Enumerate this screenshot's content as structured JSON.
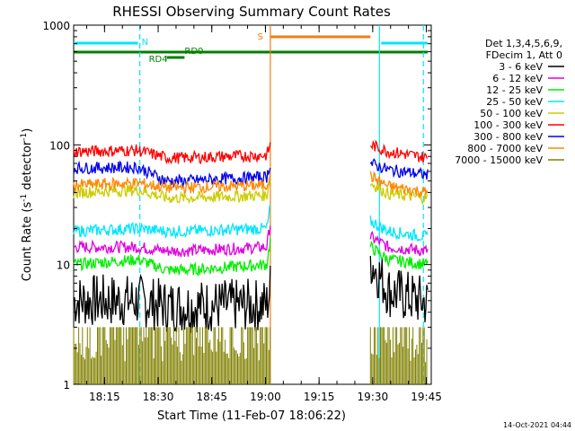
{
  "chart_data": {
    "type": "line",
    "title": "RHESSI Observing Summary Count Rates",
    "xlabel": "Start Time (11-Feb-07 18:06:22)",
    "ylabel_main": "Count Rate (s",
    "ylabel_sup1": "-1",
    "ylabel_mid": " detector",
    "ylabel_sup2": "-1",
    "ylabel_end": ")",
    "y_scale": "log",
    "ylim": [
      1,
      1000
    ],
    "xlim_minutes": [
      0,
      100
    ],
    "x_ticks": [
      "18:15",
      "18:30",
      "18:45",
      "19:00",
      "19:15",
      "19:30",
      "19:45"
    ],
    "y_ticks": [
      "1",
      "10",
      "100",
      "1000"
    ],
    "legend_header": [
      "Det 1,3,4,5,6,9,",
      "FDecim 1, Att 0"
    ],
    "legend_position": "right",
    "timestamp": "14-Oct-2021 04:44",
    "flags": [
      {
        "label": "N",
        "color": "#00e5ff",
        "segments": [
          [
            0,
            18
          ],
          [
            86,
            99
          ]
        ]
      },
      {
        "label": "S",
        "color": "#f07d1a",
        "segments": [
          [
            55,
            83
          ]
        ]
      },
      {
        "label": "RD0",
        "color": "#008000",
        "segments": [
          [
            0,
            99
          ]
        ]
      },
      {
        "label": "RD4",
        "color": "#008000",
        "segments": [
          [
            26,
            31
          ]
        ]
      }
    ],
    "vlines": [
      {
        "t": 18.5,
        "color": "#00e5ff",
        "style": "dashed"
      },
      {
        "t": 55.0,
        "color": "#f07d1a",
        "style": "solid"
      },
      {
        "t": 85.5,
        "color": "#00e5ff",
        "style": "solid"
      },
      {
        "t": 97.8,
        "color": "#00e5ff",
        "style": "dashed"
      }
    ],
    "gaps": [
      [
        55,
        83
      ]
    ],
    "series": [
      {
        "name": "3 - 6 keV",
        "color": "#000000",
        "knots": [
          [
            0,
            5.0
          ],
          [
            18,
            5.0
          ],
          [
            26,
            4.5
          ],
          [
            31,
            4.5
          ],
          [
            54,
            4.6
          ],
          [
            55,
            6.5
          ],
          [
            83,
            11
          ],
          [
            88,
            6
          ],
          [
            99,
            4.8
          ]
        ]
      },
      {
        "name": "6 - 12 keV",
        "color": "#e000e0",
        "knots": [
          [
            0,
            14
          ],
          [
            18,
            14
          ],
          [
            26,
            13
          ],
          [
            31,
            13
          ],
          [
            54,
            14
          ],
          [
            55,
            22
          ],
          [
            83,
            17
          ],
          [
            88,
            14
          ],
          [
            99,
            13
          ]
        ]
      },
      {
        "name": "12 - 25 keV",
        "color": "#00ee00",
        "knots": [
          [
            0,
            10
          ],
          [
            18,
            11
          ],
          [
            26,
            9
          ],
          [
            31,
            9
          ],
          [
            54,
            10
          ],
          [
            55,
            16
          ],
          [
            83,
            14
          ],
          [
            88,
            11
          ],
          [
            99,
            10
          ]
        ]
      },
      {
        "name": "25 - 50 keV",
        "color": "#00e5ff",
        "knots": [
          [
            0,
            19
          ],
          [
            18,
            20
          ],
          [
            26,
            19
          ],
          [
            31,
            19
          ],
          [
            54,
            20
          ],
          [
            55,
            30
          ],
          [
            83,
            23
          ],
          [
            88,
            19
          ],
          [
            99,
            17
          ]
        ]
      },
      {
        "name": "50 - 100 keV",
        "color": "#cccc00",
        "knots": [
          [
            0,
            40
          ],
          [
            18,
            42
          ],
          [
            26,
            36
          ],
          [
            31,
            36
          ],
          [
            54,
            38
          ],
          [
            55,
            55
          ],
          [
            83,
            48
          ],
          [
            88,
            39
          ],
          [
            99,
            36
          ]
        ]
      },
      {
        "name": "100 - 300 keV",
        "color": "#ff0000",
        "knots": [
          [
            0,
            88
          ],
          [
            18,
            90
          ],
          [
            26,
            78
          ],
          [
            31,
            78
          ],
          [
            54,
            82
          ],
          [
            55,
            100
          ],
          [
            83,
            100
          ],
          [
            88,
            88
          ],
          [
            99,
            78
          ]
        ]
      },
      {
        "name": "300 - 800 keV",
        "color": "#0000ee",
        "knots": [
          [
            0,
            64
          ],
          [
            18,
            65
          ],
          [
            26,
            50
          ],
          [
            31,
            50
          ],
          [
            54,
            54
          ],
          [
            55,
            70
          ],
          [
            83,
            70
          ],
          [
            88,
            62
          ],
          [
            99,
            56
          ]
        ]
      },
      {
        "name": "800 - 7000 keV",
        "color": "#ff8800",
        "knots": [
          [
            0,
            46
          ],
          [
            18,
            48
          ],
          [
            26,
            44
          ],
          [
            31,
            44
          ],
          [
            54,
            46
          ],
          [
            55,
            60
          ],
          [
            83,
            55
          ],
          [
            88,
            45
          ],
          [
            99,
            40
          ]
        ]
      },
      {
        "name": "7000 - 15000 keV",
        "color": "#808000",
        "knots": [
          [
            0,
            1.6
          ],
          [
            18,
            1.8
          ],
          [
            26,
            1.5
          ],
          [
            31,
            1.5
          ],
          [
            54,
            1.6
          ],
          [
            55,
            1.6
          ],
          [
            83,
            1.6
          ],
          [
            99,
            1.6
          ]
        ]
      }
    ]
  }
}
